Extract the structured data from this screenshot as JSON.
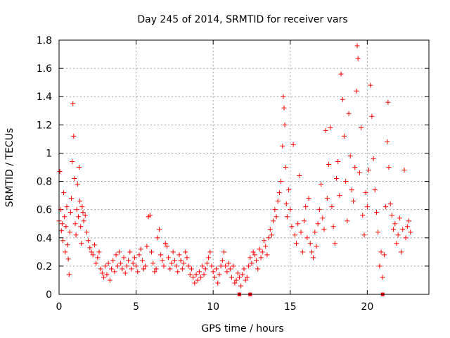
{
  "chart_data": {
    "type": "scatter",
    "title": "Day 245 of 2014, SRMTID for receiver vars",
    "xlabel": "GPS time / hours",
    "ylabel": "SRMTID / TECUs",
    "xlim": [
      0,
      24
    ],
    "ylim": [
      0,
      1.8
    ],
    "x_ticks": [
      0,
      5,
      10,
      15,
      20
    ],
    "x_tick_labels": [
      "0",
      "5",
      "10",
      "15",
      "20"
    ],
    "y_ticks": [
      0,
      0.2,
      0.4,
      0.6,
      0.8,
      1,
      1.2,
      1.4,
      1.6,
      1.8
    ],
    "y_tick_labels": [
      "0",
      "0.2",
      "0.4",
      "0.6",
      "0.8",
      "1",
      "1.2",
      "1.4",
      "1.6",
      "1.8"
    ],
    "grid": true,
    "marker": "plus",
    "marker_color": "#ff0000",
    "series": [
      {
        "name": "SRMTID",
        "points": [
          [
            0.0,
            0.52
          ],
          [
            0.05,
            0.87
          ],
          [
            0.1,
            0.6
          ],
          [
            0.15,
            0.45
          ],
          [
            0.2,
            0.5
          ],
          [
            0.25,
            0.38
          ],
          [
            0.3,
            0.72
          ],
          [
            0.35,
            0.55
          ],
          [
            0.4,
            0.3
          ],
          [
            0.45,
            0.48
          ],
          [
            0.5,
            0.62
          ],
          [
            0.55,
            0.35
          ],
          [
            0.6,
            0.25
          ],
          [
            0.65,
            0.14
          ],
          [
            0.7,
            0.44
          ],
          [
            0.75,
            0.58
          ],
          [
            0.8,
            0.68
          ],
          [
            0.85,
            0.94
          ],
          [
            0.9,
            1.35
          ],
          [
            0.95,
            1.12
          ],
          [
            1.0,
            0.82
          ],
          [
            1.05,
            0.5
          ],
          [
            1.1,
            0.42
          ],
          [
            1.15,
            0.6
          ],
          [
            1.2,
            0.78
          ],
          [
            1.25,
            0.55
          ],
          [
            1.3,
            0.9
          ],
          [
            1.35,
            0.66
          ],
          [
            1.4,
            0.48
          ],
          [
            1.45,
            0.36
          ],
          [
            1.5,
            0.62
          ],
          [
            1.55,
            0.58
          ],
          [
            1.6,
            0.52
          ],
          [
            1.7,
            0.56
          ],
          [
            1.8,
            0.44
          ],
          [
            1.9,
            0.38
          ],
          [
            2.0,
            0.33
          ],
          [
            2.1,
            0.3
          ],
          [
            2.2,
            0.28
          ],
          [
            2.3,
            0.35
          ],
          [
            2.4,
            0.22
          ],
          [
            2.5,
            0.26
          ],
          [
            2.6,
            0.3
          ],
          [
            2.7,
            0.18
          ],
          [
            2.8,
            0.15
          ],
          [
            2.9,
            0.12
          ],
          [
            3.0,
            0.2
          ],
          [
            3.1,
            0.14
          ],
          [
            3.2,
            0.22
          ],
          [
            3.3,
            0.1
          ],
          [
            3.4,
            0.18
          ],
          [
            3.5,
            0.24
          ],
          [
            3.6,
            0.16
          ],
          [
            3.7,
            0.28
          ],
          [
            3.8,
            0.2
          ],
          [
            3.9,
            0.3
          ],
          [
            4.0,
            0.22
          ],
          [
            4.1,
            0.18
          ],
          [
            4.2,
            0.26
          ],
          [
            4.3,
            0.15
          ],
          [
            4.4,
            0.2
          ],
          [
            4.5,
            0.24
          ],
          [
            4.6,
            0.3
          ],
          [
            4.7,
            0.18
          ],
          [
            4.8,
            0.22
          ],
          [
            4.9,
            0.26
          ],
          [
            5.0,
            0.2
          ],
          [
            5.1,
            0.16
          ],
          [
            5.2,
            0.28
          ],
          [
            5.3,
            0.32
          ],
          [
            5.4,
            0.24
          ],
          [
            5.5,
            0.18
          ],
          [
            5.6,
            0.2
          ],
          [
            5.7,
            0.34
          ],
          [
            5.8,
            0.55
          ],
          [
            5.9,
            0.56
          ],
          [
            6.0,
            0.3
          ],
          [
            6.1,
            0.22
          ],
          [
            6.2,
            0.16
          ],
          [
            6.3,
            0.18
          ],
          [
            6.4,
            0.4
          ],
          [
            6.5,
            0.46
          ],
          [
            6.6,
            0.28
          ],
          [
            6.7,
            0.24
          ],
          [
            6.8,
            0.2
          ],
          [
            6.9,
            0.36
          ],
          [
            7.0,
            0.34
          ],
          [
            7.1,
            0.26
          ],
          [
            7.2,
            0.18
          ],
          [
            7.3,
            0.22
          ],
          [
            7.4,
            0.3
          ],
          [
            7.5,
            0.24
          ],
          [
            7.6,
            0.2
          ],
          [
            7.7,
            0.16
          ],
          [
            7.8,
            0.28
          ],
          [
            7.9,
            0.24
          ],
          [
            8.0,
            0.18
          ],
          [
            8.1,
            0.22
          ],
          [
            8.2,
            0.3
          ],
          [
            8.3,
            0.26
          ],
          [
            8.4,
            0.2
          ],
          [
            8.5,
            0.14
          ],
          [
            8.6,
            0.18
          ],
          [
            8.7,
            0.12
          ],
          [
            8.8,
            0.08
          ],
          [
            8.9,
            0.14
          ],
          [
            9.0,
            0.1
          ],
          [
            9.1,
            0.16
          ],
          [
            9.2,
            0.12
          ],
          [
            9.3,
            0.2
          ],
          [
            9.4,
            0.14
          ],
          [
            9.5,
            0.18
          ],
          [
            9.6,
            0.22
          ],
          [
            9.7,
            0.26
          ],
          [
            9.8,
            0.3
          ],
          [
            9.9,
            0.2
          ],
          [
            10.0,
            0.16
          ],
          [
            10.1,
            0.12
          ],
          [
            10.2,
            0.18
          ],
          [
            10.3,
            0.08
          ],
          [
            10.4,
            0.14
          ],
          [
            10.5,
            0.2
          ],
          [
            10.6,
            0.24
          ],
          [
            10.7,
            0.3
          ],
          [
            10.8,
            0.2
          ],
          [
            10.9,
            0.16
          ],
          [
            11.0,
            0.22
          ],
          [
            11.1,
            0.18
          ],
          [
            11.2,
            0.12
          ],
          [
            11.3,
            0.2
          ],
          [
            11.4,
            0.08
          ],
          [
            11.5,
            0.1
          ],
          [
            11.6,
            0.15
          ],
          [
            11.7,
            0.12
          ],
          [
            11.8,
            0.06
          ],
          [
            11.9,
            0.14
          ],
          [
            12.0,
            0.18
          ],
          [
            12.1,
            0.1
          ],
          [
            12.2,
            0.12
          ],
          [
            12.3,
            0.2
          ],
          [
            12.4,
            0.26
          ],
          [
            12.5,
            0.22
          ],
          [
            12.6,
            0.3
          ],
          [
            12.7,
            0.28
          ],
          [
            12.8,
            0.24
          ],
          [
            12.9,
            0.18
          ],
          [
            13.0,
            0.32
          ],
          [
            13.1,
            0.26
          ],
          [
            13.2,
            0.3
          ],
          [
            13.3,
            0.38
          ],
          [
            13.4,
            0.34
          ],
          [
            13.5,
            0.28
          ],
          [
            13.6,
            0.4
          ],
          [
            13.7,
            0.46
          ],
          [
            13.8,
            0.42
          ],
          [
            13.9,
            0.52
          ],
          [
            14.0,
            0.6
          ],
          [
            14.1,
            0.55
          ],
          [
            14.2,
            0.66
          ],
          [
            14.3,
            0.72
          ],
          [
            14.4,
            0.8
          ],
          [
            14.5,
            1.05
          ],
          [
            14.55,
            1.4
          ],
          [
            14.6,
            1.32
          ],
          [
            14.65,
            1.2
          ],
          [
            14.7,
            0.9
          ],
          [
            14.75,
            0.64
          ],
          [
            14.8,
            0.55
          ],
          [
            14.9,
            0.74
          ],
          [
            15.0,
            0.6
          ],
          [
            15.1,
            0.48
          ],
          [
            15.2,
            1.06
          ],
          [
            15.3,
            0.42
          ],
          [
            15.4,
            0.36
          ],
          [
            15.5,
            0.5
          ],
          [
            15.6,
            0.84
          ],
          [
            15.7,
            0.44
          ],
          [
            15.8,
            0.3
          ],
          [
            15.9,
            0.52
          ],
          [
            16.0,
            0.62
          ],
          [
            16.1,
            0.4
          ],
          [
            16.2,
            0.68
          ],
          [
            16.3,
            0.36
          ],
          [
            16.4,
            0.3
          ],
          [
            16.5,
            0.26
          ],
          [
            16.6,
            0.44
          ],
          [
            16.7,
            0.34
          ],
          [
            16.8,
            0.5
          ],
          [
            16.9,
            0.6
          ],
          [
            17.0,
            0.78
          ],
          [
            17.1,
            0.54
          ],
          [
            17.2,
            0.46
          ],
          [
            17.3,
            1.16
          ],
          [
            17.4,
            0.68
          ],
          [
            17.5,
            0.92
          ],
          [
            17.6,
            1.18
          ],
          [
            17.7,
            0.62
          ],
          [
            17.8,
            0.48
          ],
          [
            17.9,
            0.36
          ],
          [
            18.0,
            0.82
          ],
          [
            18.1,
            0.94
          ],
          [
            18.2,
            0.7
          ],
          [
            18.3,
            1.56
          ],
          [
            18.4,
            1.38
          ],
          [
            18.5,
            1.12
          ],
          [
            18.6,
            0.8
          ],
          [
            18.7,
            0.52
          ],
          [
            18.8,
            1.28
          ],
          [
            18.9,
            0.98
          ],
          [
            19.0,
            0.74
          ],
          [
            19.1,
            0.66
          ],
          [
            19.2,
            0.9
          ],
          [
            19.3,
            1.44
          ],
          [
            19.35,
            1.76
          ],
          [
            19.4,
            1.67
          ],
          [
            19.5,
            0.86
          ],
          [
            19.6,
            1.18
          ],
          [
            19.7,
            0.56
          ],
          [
            19.8,
            0.42
          ],
          [
            19.9,
            0.72
          ],
          [
            20.0,
            0.62
          ],
          [
            20.1,
            0.88
          ],
          [
            20.2,
            1.48
          ],
          [
            20.3,
            1.26
          ],
          [
            20.4,
            0.96
          ],
          [
            20.5,
            0.74
          ],
          [
            20.6,
            0.58
          ],
          [
            20.7,
            0.44
          ],
          [
            20.8,
            0.2
          ],
          [
            20.9,
            0.3
          ],
          [
            21.0,
            0.12
          ],
          [
            21.1,
            0.28
          ],
          [
            21.2,
            0.62
          ],
          [
            21.3,
            1.08
          ],
          [
            21.35,
            1.36
          ],
          [
            21.4,
            0.9
          ],
          [
            21.5,
            0.64
          ],
          [
            21.6,
            0.56
          ],
          [
            21.7,
            0.46
          ],
          [
            21.8,
            0.5
          ],
          [
            21.9,
            0.36
          ],
          [
            22.0,
            0.42
          ],
          [
            22.1,
            0.54
          ],
          [
            22.2,
            0.3
          ],
          [
            22.3,
            0.46
          ],
          [
            22.4,
            0.88
          ],
          [
            22.5,
            0.4
          ],
          [
            22.6,
            0.48
          ],
          [
            22.7,
            0.52
          ],
          [
            22.8,
            0.44
          ]
        ]
      }
    ],
    "zero_markers_x": [
      11.7,
      12.4,
      21.0
    ]
  }
}
